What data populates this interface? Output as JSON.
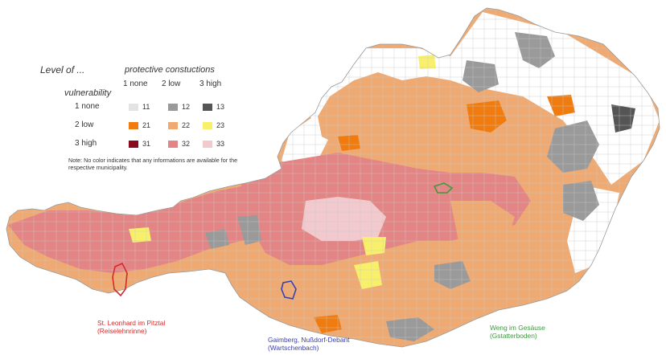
{
  "legend": {
    "title": "Level of ...",
    "protective_title": "protective constuctions",
    "vulnerability_title": "vulnerability",
    "columns": [
      "1 none",
      "2 low",
      "3 high"
    ],
    "rows": [
      {
        "label": "1 none",
        "cells": [
          {
            "code": "11",
            "color": "#e3e3e3"
          },
          {
            "code": "12",
            "color": "#9a9a9a"
          },
          {
            "code": "13",
            "color": "#555555"
          }
        ]
      },
      {
        "label": "2 low",
        "cells": [
          {
            "code": "21",
            "color": "#f07c10"
          },
          {
            "code": "22",
            "color": "#eeaa72"
          },
          {
            "code": "23",
            "color": "#f8f06a"
          }
        ]
      },
      {
        "label": "3 high",
        "cells": [
          {
            "code": "31",
            "color": "#8c0a1e"
          },
          {
            "code": "32",
            "color": "#e48585"
          },
          {
            "code": "33",
            "color": "#f2c9cd"
          }
        ]
      }
    ],
    "note": "Note: No color indicates that any informations are available for the respective municipality."
  },
  "sites": [
    {
      "name": "St. Leonhard im Pitztal",
      "sub": "(Reiselehnrinne)",
      "color": "#d42a2a"
    },
    {
      "name": "Gaimberg, Nußdorf-Debant",
      "sub": "(Wartschenbach)",
      "color": "#3b3fb0"
    },
    {
      "name": "Weng im Gesäuse",
      "sub": "(Gstatterboden)",
      "color": "#3f9a3f"
    }
  ],
  "colors": {
    "outline": "#9a9a9a",
    "background": "#ffffff"
  }
}
